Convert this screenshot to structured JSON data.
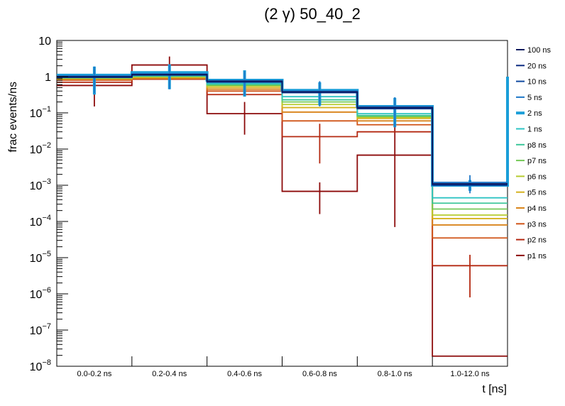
{
  "chart_data": {
    "type": "step",
    "title": "(2 γ) 50_40_2",
    "xlabel": "t [ns]",
    "ylabel": "frac events/ns",
    "yscale": "log",
    "ylim": [
      1e-08,
      10
    ],
    "y_ticks": [
      {
        "value": 1e-08,
        "base": "10",
        "exp": "−8"
      },
      {
        "value": 1e-07,
        "base": "10",
        "exp": "−7"
      },
      {
        "value": 1e-06,
        "base": "10",
        "exp": "−6"
      },
      {
        "value": 1e-05,
        "base": "10",
        "exp": "−5"
      },
      {
        "value": 0.0001,
        "base": "10",
        "exp": "−4"
      },
      {
        "value": 0.001,
        "base": "10",
        "exp": "−3"
      },
      {
        "value": 0.01,
        "base": "10",
        "exp": "−2"
      },
      {
        "value": 0.1,
        "base": "10",
        "exp": "−1"
      },
      {
        "value": 1,
        "base": "1",
        "exp": ""
      },
      {
        "value": 10,
        "base": "10",
        "exp": ""
      }
    ],
    "categories": [
      "0.0-0.2 ns",
      "0.2-0.4 ns",
      "0.4-0.6 ns",
      "0.6-0.8 ns",
      "0.8-1.0 ns",
      "1.0-12.0 ns"
    ],
    "legend_position": "right",
    "series": [
      {
        "name": "100 ns",
        "color": "#0b1a5e",
        "values": [
          1.0,
          1.15,
          0.75,
          0.38,
          0.14,
          0.0011
        ]
      },
      {
        "name": "20 ns",
        "color": "#0a2a80",
        "values": [
          0.98,
          1.12,
          0.73,
          0.37,
          0.135,
          0.00105
        ]
      },
      {
        "name": "10 ns",
        "color": "#0f4aa0",
        "values": [
          0.95,
          1.1,
          0.7,
          0.36,
          0.13,
          0.001
        ]
      },
      {
        "name": "5 ns",
        "color": "#1f78c8",
        "values": [
          1.05,
          1.2,
          0.78,
          0.4,
          0.15,
          0.0012
        ],
        "err_low": [
          0.35,
          0.45,
          0.3,
          0.15,
          0.04,
          0.0006
        ],
        "err_high": [
          1.9,
          2.1,
          1.4,
          0.75,
          0.27,
          0.0019
        ]
      },
      {
        "name": "2 ns",
        "color": "#1a9ed8",
        "thick": true,
        "values": [
          1.1,
          1.3,
          0.8,
          0.42,
          0.15,
          0.001
        ],
        "err_low": [
          0.32,
          0.45,
          0.28,
          0.16,
          0.04,
          0.0007
        ],
        "err_high": [
          1.9,
          2.2,
          1.5,
          0.7,
          0.26,
          0.0014
        ]
      },
      {
        "name": "1 ns",
        "color": "#2ec4c4",
        "values": [
          1.0,
          1.1,
          0.65,
          0.28,
          0.095,
          0.00045
        ]
      },
      {
        "name": "p8 ns",
        "color": "#3cc69a",
        "values": [
          0.95,
          1.05,
          0.62,
          0.23,
          0.085,
          0.00032
        ]
      },
      {
        "name": "p7 ns",
        "color": "#74c957",
        "values": [
          0.92,
          1.02,
          0.58,
          0.2,
          0.08,
          0.00022
        ]
      },
      {
        "name": "p6 ns",
        "color": "#b6cc2e",
        "values": [
          0.9,
          1.0,
          0.55,
          0.17,
          0.075,
          0.00015
        ]
      },
      {
        "name": "p5 ns",
        "color": "#d6b21e",
        "values": [
          0.88,
          0.95,
          0.5,
          0.14,
          0.07,
          0.00012
        ]
      },
      {
        "name": "p4 ns",
        "color": "#d9851c",
        "values": [
          0.85,
          0.9,
          0.45,
          0.105,
          0.06,
          8e-05
        ]
      },
      {
        "name": "p3 ns",
        "color": "#d05418",
        "values": [
          0.8,
          0.88,
          0.4,
          0.06,
          0.047,
          3.5e-05
        ]
      },
      {
        "name": "p2 ns",
        "color": "#b42810",
        "values": [
          0.7,
          0.85,
          0.32,
          0.022,
          0.03,
          6e-06
        ],
        "err_low": [
          null,
          null,
          null,
          0.004,
          null,
          8e-07
        ],
        "err_high": [
          null,
          null,
          null,
          0.05,
          null,
          1.2e-05
        ]
      },
      {
        "name": "p1 ns",
        "color": "#8c0a0a",
        "values": [
          0.57,
          2.1,
          0.095,
          0.00068,
          0.0068,
          1.9e-08
        ],
        "err_low": [
          0.15,
          0.6,
          0.025,
          0.00016,
          7e-05,
          null
        ],
        "err_high": [
          1.2,
          3.6,
          0.2,
          0.0012,
          0.04,
          3.5e-08
        ]
      }
    ]
  }
}
